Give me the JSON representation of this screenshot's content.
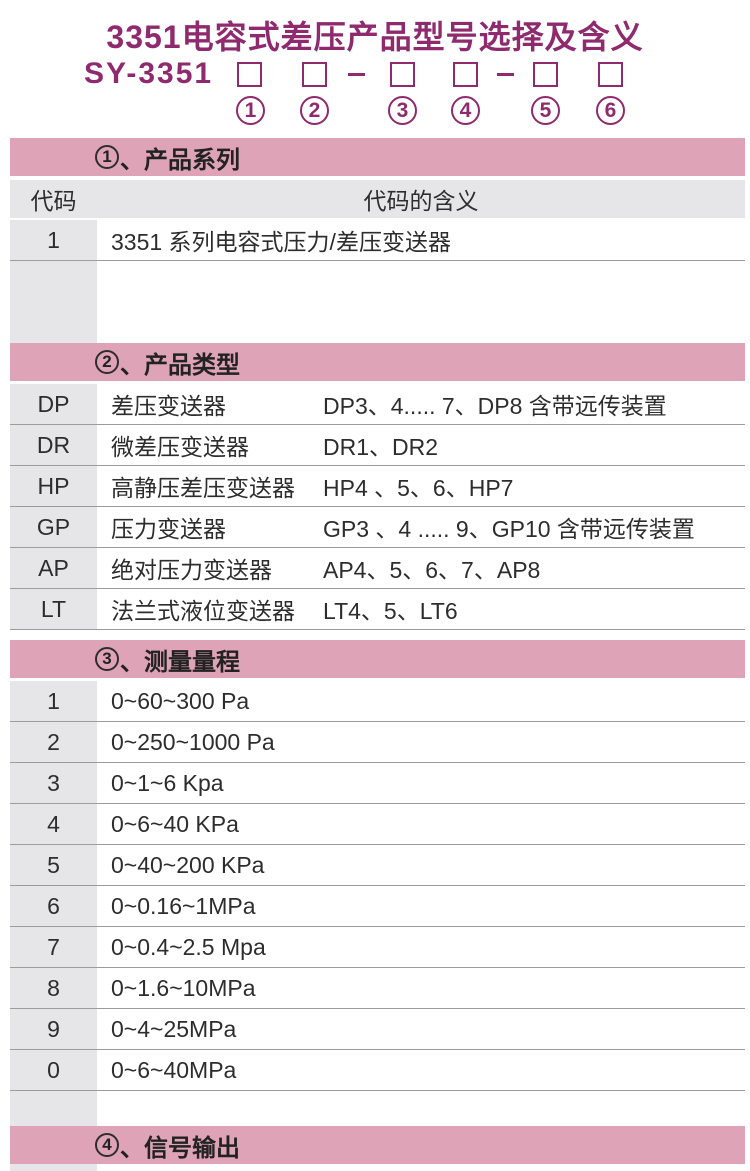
{
  "colors": {
    "accent": "#8e2a6d",
    "header_pink": "#dfa3b7",
    "cell_gray": "#e6e6e8",
    "row_line": "#9c9c9c"
  },
  "title": "3351电容式差压产品型号选择及含义",
  "model": {
    "prefix": "SY-3351",
    "separator": "-",
    "positions": [
      "1",
      "2",
      "3",
      "4",
      "5",
      "6"
    ]
  },
  "sections": {
    "s1": {
      "num": "1",
      "label": "、产品系列",
      "col_code": "代码",
      "col_meaning": "代码的含义",
      "rows": [
        {
          "code": "1",
          "meaning": "3351 系列电容式压力/差压变送器"
        }
      ]
    },
    "s2": {
      "num": "2",
      "label": "、产品类型",
      "rows": [
        {
          "code": "DP",
          "name": "差压变送器",
          "models": "DP3、4..... 7、DP8  含带远传装置"
        },
        {
          "code": "DR",
          "name": "微差压变送器",
          "models": "DR1、DR2"
        },
        {
          "code": "HP",
          "name": "高静压差压变送器",
          "models": "HP4 、5、6、HP7"
        },
        {
          "code": "GP",
          "name": "压力变送器",
          "models": "GP3 、4 ..... 9、GP10 含带远传装置"
        },
        {
          "code": "AP",
          "name": "绝对压力变送器",
          "models": "AP4、5、6、7、AP8"
        },
        {
          "code": "LT",
          "name": "法兰式液位变送器",
          "models": "LT4、5、LT6"
        }
      ]
    },
    "s3": {
      "num": "3",
      "label": "、测量量程",
      "rows": [
        {
          "code": "1",
          "range": "0~60~300 Pa"
        },
        {
          "code": "2",
          "range": "0~250~1000 Pa"
        },
        {
          "code": "3",
          "range": "0~1~6 Kpa"
        },
        {
          "code": "4",
          "range": "0~6~40 KPa"
        },
        {
          "code": "5",
          "range": "0~40~200 KPa"
        },
        {
          "code": "6",
          "range": "0~0.16~1MPa"
        },
        {
          "code": "7",
          "range": "0~0.4~2.5 Mpa"
        },
        {
          "code": "8",
          "range": "0~1.6~10MPa"
        },
        {
          "code": "9",
          "range": "0~4~25MPa"
        },
        {
          "code": "0",
          "range": "0~6~40MPa"
        }
      ]
    },
    "s4": {
      "num": "4",
      "label": "、信号输出"
    }
  }
}
